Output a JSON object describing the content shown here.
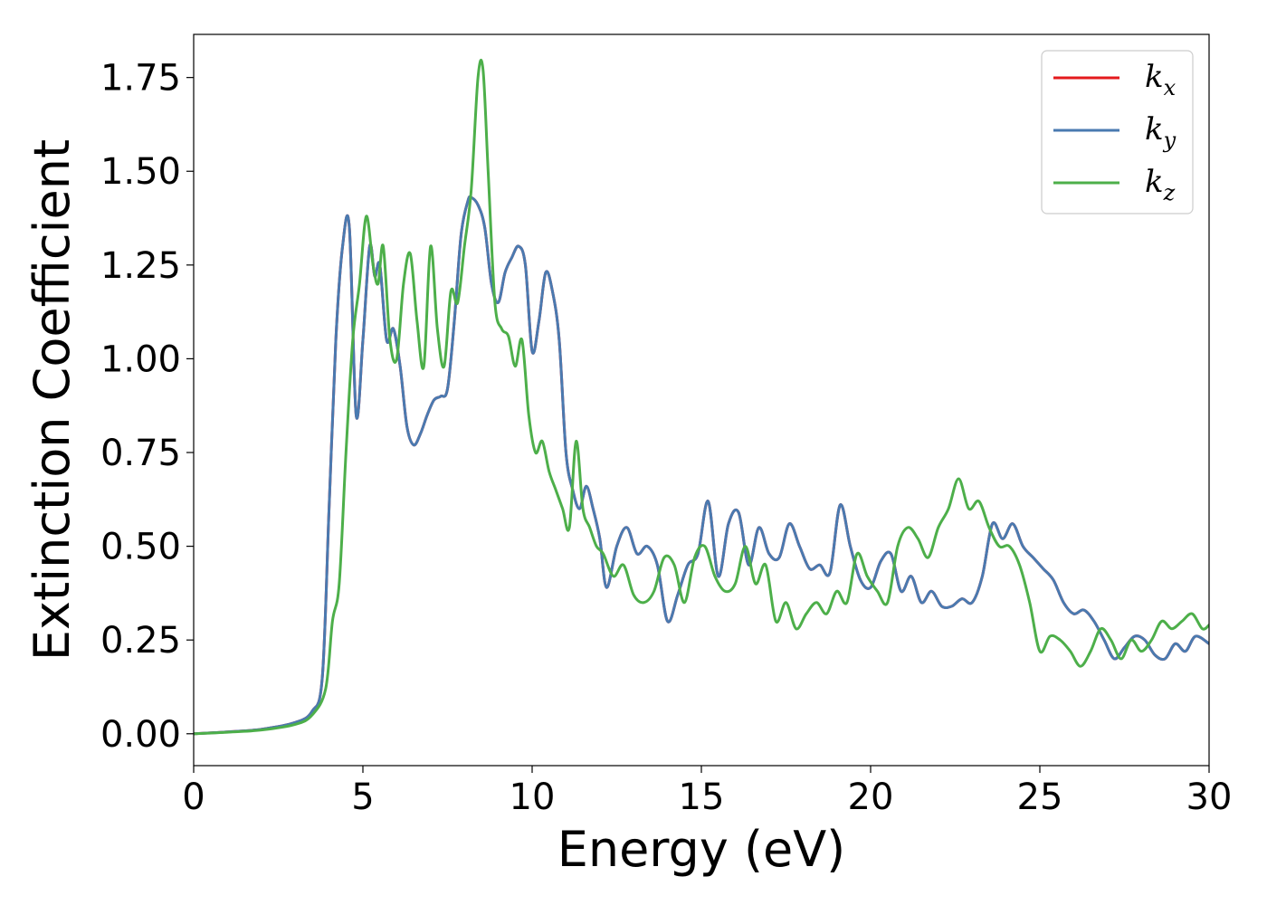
{
  "chart_data": {
    "type": "line",
    "title": "",
    "xlabel": "Energy (eV)",
    "ylabel": "Extinction Coefficient",
    "xlim": [
      0,
      30
    ],
    "ylim": [
      -0.085,
      1.865
    ],
    "xticks": [
      0,
      5,
      10,
      15,
      20,
      25,
      30
    ],
    "xtick_labels": [
      "0",
      "5",
      "10",
      "15",
      "20",
      "25",
      "30"
    ],
    "yticks": [
      0,
      0.25,
      0.5,
      0.75,
      1.0,
      1.25,
      1.5,
      1.75
    ],
    "ytick_labels": [
      "0.00",
      "0.25",
      "0.50",
      "0.75",
      "1.00",
      "1.25",
      "1.50",
      "1.75"
    ],
    "grid": false,
    "legend_position": "top-right",
    "colors": {
      "kx": "#e41a1c",
      "ky": "#4a7ab0",
      "kz": "#4daf4a"
    },
    "series": [
      {
        "key": "kx",
        "name_main": "k",
        "name_sub": "x",
        "x": [
          0,
          1,
          2,
          3,
          3.5,
          3.8,
          4.0,
          4.2,
          4.4,
          4.6,
          4.8,
          5.0,
          5.2,
          5.35,
          5.5,
          5.7,
          5.9,
          6.1,
          6.3,
          6.5,
          6.7,
          6.9,
          7.1,
          7.3,
          7.5,
          7.7,
          7.9,
          8.1,
          8.2,
          8.4,
          8.6,
          8.8,
          9.0,
          9.2,
          9.4,
          9.6,
          9.8,
          10.0,
          10.2,
          10.4,
          10.6,
          10.8,
          11.0,
          11.2,
          11.4,
          11.6,
          11.8,
          12.0,
          12.2,
          12.5,
          12.8,
          13.1,
          13.4,
          13.7,
          14.0,
          14.3,
          14.6,
          14.9,
          15.2,
          15.5,
          15.8,
          16.1,
          16.4,
          16.7,
          17.0,
          17.3,
          17.6,
          17.9,
          18.2,
          18.5,
          18.8,
          19.1,
          19.4,
          19.7,
          20.0,
          20.3,
          20.6,
          20.9,
          21.2,
          21.5,
          21.8,
          22.1,
          22.4,
          22.7,
          23.0,
          23.3,
          23.6,
          23.9,
          24.2,
          24.5,
          24.8,
          25.1,
          25.4,
          25.7,
          26.0,
          26.3,
          26.6,
          26.9,
          27.2,
          27.5,
          27.8,
          28.1,
          28.4,
          28.7,
          29.0,
          29.3,
          29.6,
          30.0
        ],
        "y": [
          0,
          0.005,
          0.012,
          0.03,
          0.06,
          0.15,
          0.6,
          1.05,
          1.3,
          1.35,
          0.85,
          1.05,
          1.3,
          1.22,
          1.25,
          1.05,
          1.08,
          0.98,
          0.82,
          0.77,
          0.8,
          0.85,
          0.89,
          0.9,
          0.92,
          1.1,
          1.33,
          1.42,
          1.43,
          1.41,
          1.35,
          1.2,
          1.15,
          1.23,
          1.27,
          1.3,
          1.25,
          1.02,
          1.1,
          1.23,
          1.18,
          1.05,
          0.75,
          0.65,
          0.6,
          0.66,
          0.6,
          0.52,
          0.39,
          0.5,
          0.55,
          0.48,
          0.5,
          0.45,
          0.3,
          0.37,
          0.45,
          0.48,
          0.62,
          0.42,
          0.56,
          0.59,
          0.45,
          0.55,
          0.48,
          0.47,
          0.56,
          0.5,
          0.44,
          0.45,
          0.43,
          0.61,
          0.5,
          0.41,
          0.39,
          0.46,
          0.48,
          0.38,
          0.42,
          0.35,
          0.38,
          0.34,
          0.34,
          0.36,
          0.35,
          0.42,
          0.56,
          0.52,
          0.56,
          0.5,
          0.47,
          0.44,
          0.41,
          0.35,
          0.32,
          0.33,
          0.3,
          0.25,
          0.2,
          0.23,
          0.26,
          0.25,
          0.21,
          0.2,
          0.24,
          0.22,
          0.26,
          0.24
        ]
      },
      {
        "key": "ky",
        "name_main": "k",
        "name_sub": "y",
        "x": [
          0,
          1,
          2,
          3,
          3.5,
          3.8,
          4.0,
          4.2,
          4.4,
          4.6,
          4.8,
          5.0,
          5.2,
          5.35,
          5.5,
          5.7,
          5.9,
          6.1,
          6.3,
          6.5,
          6.7,
          6.9,
          7.1,
          7.3,
          7.5,
          7.7,
          7.9,
          8.1,
          8.2,
          8.4,
          8.6,
          8.8,
          9.0,
          9.2,
          9.4,
          9.6,
          9.8,
          10.0,
          10.2,
          10.4,
          10.6,
          10.8,
          11.0,
          11.2,
          11.4,
          11.6,
          11.8,
          12.0,
          12.2,
          12.5,
          12.8,
          13.1,
          13.4,
          13.7,
          14.0,
          14.3,
          14.6,
          14.9,
          15.2,
          15.5,
          15.8,
          16.1,
          16.4,
          16.7,
          17.0,
          17.3,
          17.6,
          17.9,
          18.2,
          18.5,
          18.8,
          19.1,
          19.4,
          19.7,
          20.0,
          20.3,
          20.6,
          20.9,
          21.2,
          21.5,
          21.8,
          22.1,
          22.4,
          22.7,
          23.0,
          23.3,
          23.6,
          23.9,
          24.2,
          24.5,
          24.8,
          25.1,
          25.4,
          25.7,
          26.0,
          26.3,
          26.6,
          26.9,
          27.2,
          27.5,
          27.8,
          28.1,
          28.4,
          28.7,
          29.0,
          29.3,
          29.6,
          30.0
        ],
        "y": [
          0,
          0.005,
          0.012,
          0.03,
          0.06,
          0.15,
          0.6,
          1.05,
          1.3,
          1.35,
          0.85,
          1.05,
          1.3,
          1.22,
          1.25,
          1.05,
          1.08,
          0.98,
          0.82,
          0.77,
          0.8,
          0.85,
          0.89,
          0.9,
          0.92,
          1.1,
          1.33,
          1.42,
          1.43,
          1.41,
          1.35,
          1.2,
          1.15,
          1.23,
          1.27,
          1.3,
          1.25,
          1.02,
          1.1,
          1.23,
          1.18,
          1.05,
          0.75,
          0.65,
          0.6,
          0.66,
          0.6,
          0.52,
          0.39,
          0.5,
          0.55,
          0.48,
          0.5,
          0.45,
          0.3,
          0.37,
          0.45,
          0.48,
          0.62,
          0.42,
          0.56,
          0.59,
          0.45,
          0.55,
          0.48,
          0.47,
          0.56,
          0.5,
          0.44,
          0.45,
          0.43,
          0.61,
          0.5,
          0.41,
          0.39,
          0.46,
          0.48,
          0.38,
          0.42,
          0.35,
          0.38,
          0.34,
          0.34,
          0.36,
          0.35,
          0.42,
          0.56,
          0.52,
          0.56,
          0.5,
          0.47,
          0.44,
          0.41,
          0.35,
          0.32,
          0.33,
          0.3,
          0.25,
          0.2,
          0.23,
          0.26,
          0.25,
          0.21,
          0.2,
          0.24,
          0.22,
          0.26,
          0.24
        ]
      },
      {
        "key": "kz",
        "name_main": "k",
        "name_sub": "z",
        "x": [
          0,
          1,
          2,
          3,
          3.5,
          3.9,
          4.1,
          4.3,
          4.5,
          4.7,
          4.9,
          5.1,
          5.3,
          5.45,
          5.6,
          5.8,
          6.0,
          6.2,
          6.4,
          6.6,
          6.8,
          7.0,
          7.2,
          7.4,
          7.6,
          7.8,
          8.0,
          8.2,
          8.4,
          8.55,
          8.7,
          8.9,
          9.1,
          9.3,
          9.5,
          9.7,
          9.9,
          10.1,
          10.3,
          10.5,
          10.7,
          10.9,
          11.1,
          11.3,
          11.5,
          11.7,
          11.9,
          12.1,
          12.4,
          12.7,
          13.0,
          13.3,
          13.6,
          13.9,
          14.2,
          14.5,
          14.8,
          15.1,
          15.4,
          15.7,
          16.0,
          16.3,
          16.6,
          16.9,
          17.2,
          17.5,
          17.8,
          18.1,
          18.4,
          18.7,
          19.0,
          19.3,
          19.6,
          19.9,
          20.2,
          20.5,
          20.8,
          21.1,
          21.4,
          21.7,
          22.0,
          22.3,
          22.6,
          22.9,
          23.2,
          23.5,
          23.8,
          24.1,
          24.4,
          24.7,
          25.0,
          25.3,
          25.6,
          25.9,
          26.2,
          26.5,
          26.8,
          27.1,
          27.4,
          27.7,
          28.0,
          28.3,
          28.6,
          28.9,
          29.2,
          29.5,
          29.8,
          30.0
        ],
        "y": [
          0,
          0.004,
          0.01,
          0.025,
          0.05,
          0.12,
          0.3,
          0.4,
          0.75,
          1.05,
          1.2,
          1.38,
          1.25,
          1.2,
          1.3,
          1.05,
          1.0,
          1.2,
          1.28,
          1.1,
          0.98,
          1.3,
          1.08,
          0.98,
          1.18,
          1.15,
          1.3,
          1.45,
          1.75,
          1.77,
          1.5,
          1.15,
          1.08,
          1.06,
          0.98,
          1.05,
          0.85,
          0.75,
          0.78,
          0.7,
          0.65,
          0.6,
          0.55,
          0.78,
          0.6,
          0.55,
          0.5,
          0.48,
          0.42,
          0.45,
          0.37,
          0.35,
          0.38,
          0.47,
          0.45,
          0.35,
          0.47,
          0.5,
          0.42,
          0.38,
          0.4,
          0.5,
          0.4,
          0.45,
          0.3,
          0.35,
          0.28,
          0.32,
          0.35,
          0.32,
          0.38,
          0.35,
          0.48,
          0.42,
          0.38,
          0.35,
          0.5,
          0.55,
          0.52,
          0.47,
          0.55,
          0.6,
          0.68,
          0.6,
          0.62,
          0.55,
          0.5,
          0.5,
          0.45,
          0.35,
          0.22,
          0.26,
          0.25,
          0.22,
          0.18,
          0.22,
          0.28,
          0.25,
          0.2,
          0.25,
          0.22,
          0.25,
          0.3,
          0.28,
          0.3,
          0.32,
          0.28,
          0.29
        ]
      }
    ]
  }
}
